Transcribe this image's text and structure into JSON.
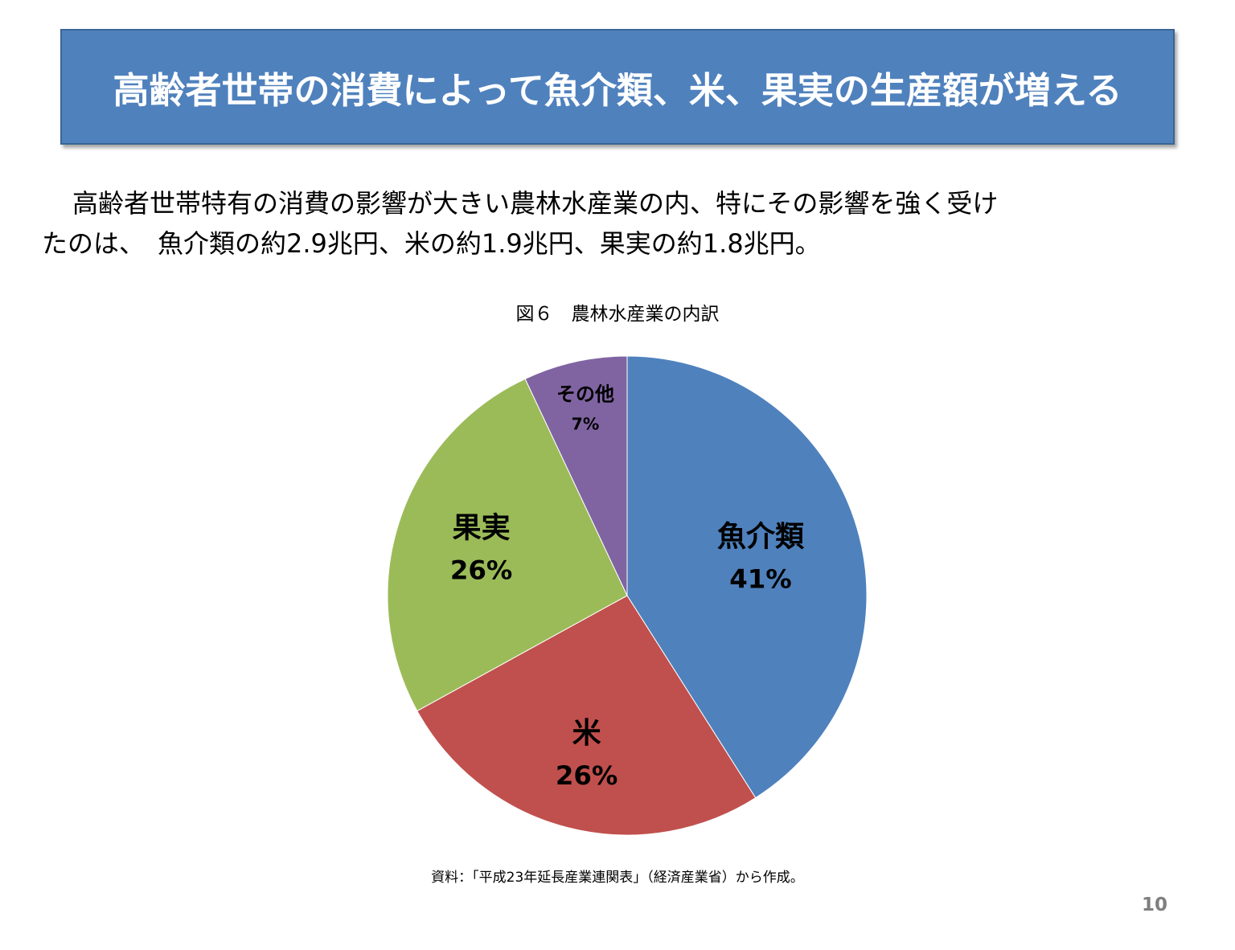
{
  "slide": {
    "title": "高齢者世帯の消費によって魚介類、米、果実の生産額が増える",
    "body_line_1": "高齢者世帯特有の消費の影響が大きい農林水産業の内、特にその影響を強く受け",
    "body_line_2": "たのは、　魚介類の約2.9兆円、米の約1.9兆円、果実の約1.8兆円。",
    "source": "資料：「平成23年延長産業連関表」（経済産業省）から作成。",
    "page_number": "10"
  },
  "chart_data": {
    "type": "pie",
    "title": "図６　農林水産業の内訳",
    "start_angle_deg": 0,
    "direction": "clockwise",
    "legend": "none",
    "slices": [
      {
        "label": "魚介類",
        "value": 41,
        "value_label": "41%",
        "color": "#4f81bd"
      },
      {
        "label": "米",
        "value": 26,
        "value_label": "26%",
        "color": "#c0504d"
      },
      {
        "label": "果実",
        "value": 26,
        "value_label": "26%",
        "color": "#9bbb59"
      },
      {
        "label": "その他",
        "value": 7,
        "value_label": "7%",
        "color": "#8064a2"
      }
    ]
  }
}
